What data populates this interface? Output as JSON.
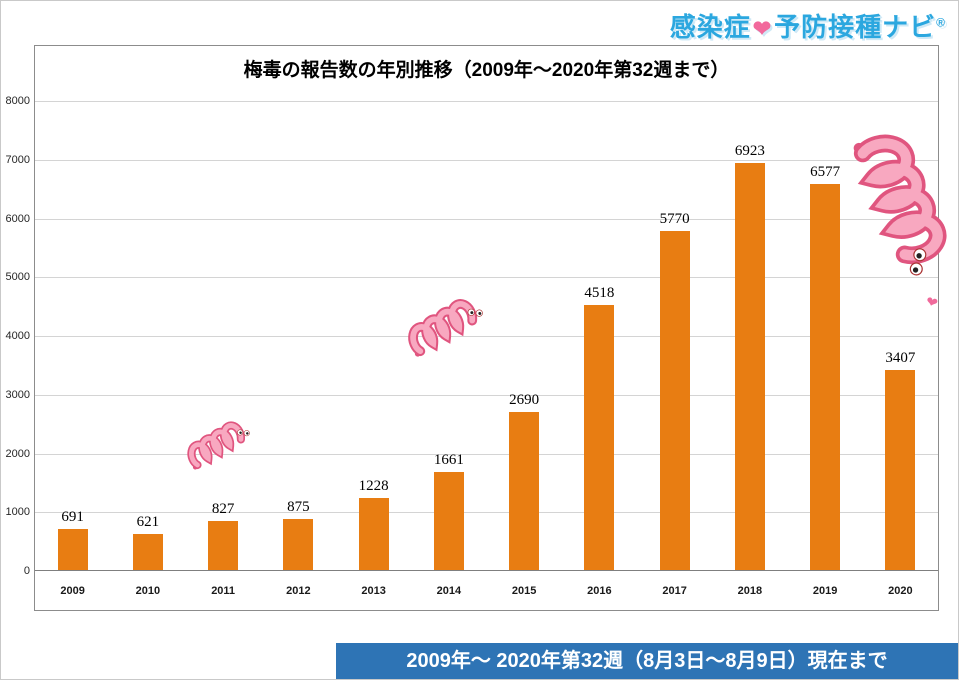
{
  "logo": {
    "part1": "感染症",
    "heart_icon": "❤",
    "part2": "予防接種ナビ",
    "registered": "®",
    "color": "#2ba7df",
    "heart_color": "#f2699c"
  },
  "chart_data": {
    "type": "bar",
    "title": "梅毒の報告数の年別推移（2009年～2020年第32週まで）",
    "categories": [
      "2009",
      "2010",
      "2011",
      "2012",
      "2013",
      "2014",
      "2015",
      "2016",
      "2017",
      "2018",
      "2019",
      "2020"
    ],
    "values": [
      691,
      621,
      827,
      875,
      1228,
      1661,
      2690,
      4518,
      5770,
      6923,
      6577,
      3407
    ],
    "xlabel": "",
    "ylabel": "",
    "ylim": [
      0,
      8000
    ],
    "ytick_step": 1000,
    "bar_color": "#e87d12",
    "grid": true,
    "legend_position": "none"
  },
  "decorations": [
    {
      "name": "spirochete-mascot-small"
    },
    {
      "name": "spirochete-mascot-medium"
    },
    {
      "name": "spirochete-mascot-large"
    }
  ],
  "footer": {
    "text": "2009年～ 2020年第32週（8月3日～8月9日）現在まで",
    "bg_color": "#2e74b5",
    "text_color": "#ffffff"
  }
}
